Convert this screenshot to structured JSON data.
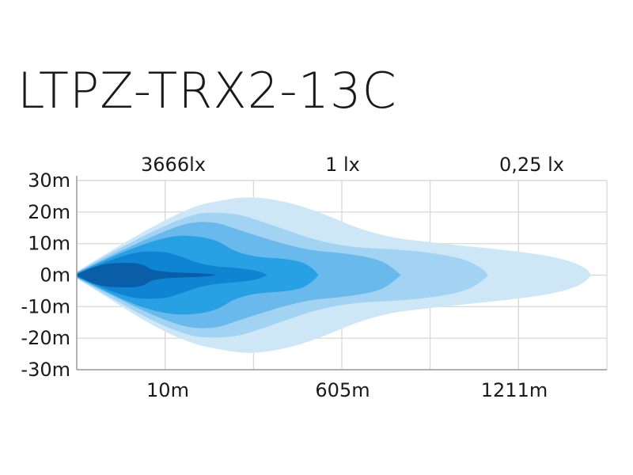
{
  "title": "LTPZ-TRX2-13C",
  "chart_data": {
    "type": "area",
    "title": "LTPZ-TRX2-13C",
    "top_labels": [
      "3666lx",
      "1 lx",
      "0,25 lx"
    ],
    "x_labels": [
      "10m",
      "605m",
      "1211m"
    ],
    "y_ticks": [
      "30m",
      "20m",
      "10m",
      "0m",
      "-10m",
      "-20m",
      "-30m"
    ],
    "ylim": [
      -30,
      30
    ],
    "grid": true,
    "colors": [
      "#cde7f7",
      "#a3d3f3",
      "#6ab9ec",
      "#27a0e4",
      "#0e84d2",
      "#0a5ea8"
    ],
    "series": [
      {
        "x": [
          0,
          0.19,
          0.31,
          0.37,
          0.45,
          0.58,
          0.71,
          0.86,
          0.94,
          0.99,
          1
        ],
        "y_top": [
          1.0,
          20.5,
          24.8,
          24.5,
          21.5,
          12.5,
          10.0,
          7.5,
          5.5,
          2.5,
          0
        ]
      },
      {
        "x": [
          0,
          0.2,
          0.3,
          0.36,
          0.5,
          0.65,
          0.75,
          0.79,
          0.8
        ],
        "y_top": [
          1.0,
          19.5,
          20.0,
          17.0,
          9.0,
          8.0,
          5.5,
          2.0,
          0
        ]
      },
      {
        "x": [
          0,
          0.18,
          0.26,
          0.32,
          0.44,
          0.52,
          0.59,
          0.62,
          0.63
        ],
        "y_top": [
          0.8,
          15.5,
          17.5,
          14.0,
          8.0,
          7.0,
          5.0,
          1.5,
          0
        ]
      },
      {
        "x": [
          0,
          0.15,
          0.26,
          0.32,
          0.43,
          0.46,
          0.47
        ],
        "y_top": [
          0.6,
          12.5,
          12.5,
          6.0,
          5.0,
          2.0,
          0
        ]
      },
      {
        "x": [
          0,
          0.1,
          0.17,
          0.2,
          0.25,
          0.33,
          0.36,
          0.37
        ],
        "y_top": [
          0.4,
          7.5,
          7.5,
          6.0,
          3.0,
          2.0,
          1.0,
          0
        ]
      },
      {
        "x": [
          0,
          0.04,
          0.1,
          0.13,
          0.15,
          0.26,
          0.27
        ],
        "y_top": [
          0.2,
          3.5,
          4.0,
          3.5,
          1.0,
          0.5,
          0
        ]
      }
    ]
  }
}
